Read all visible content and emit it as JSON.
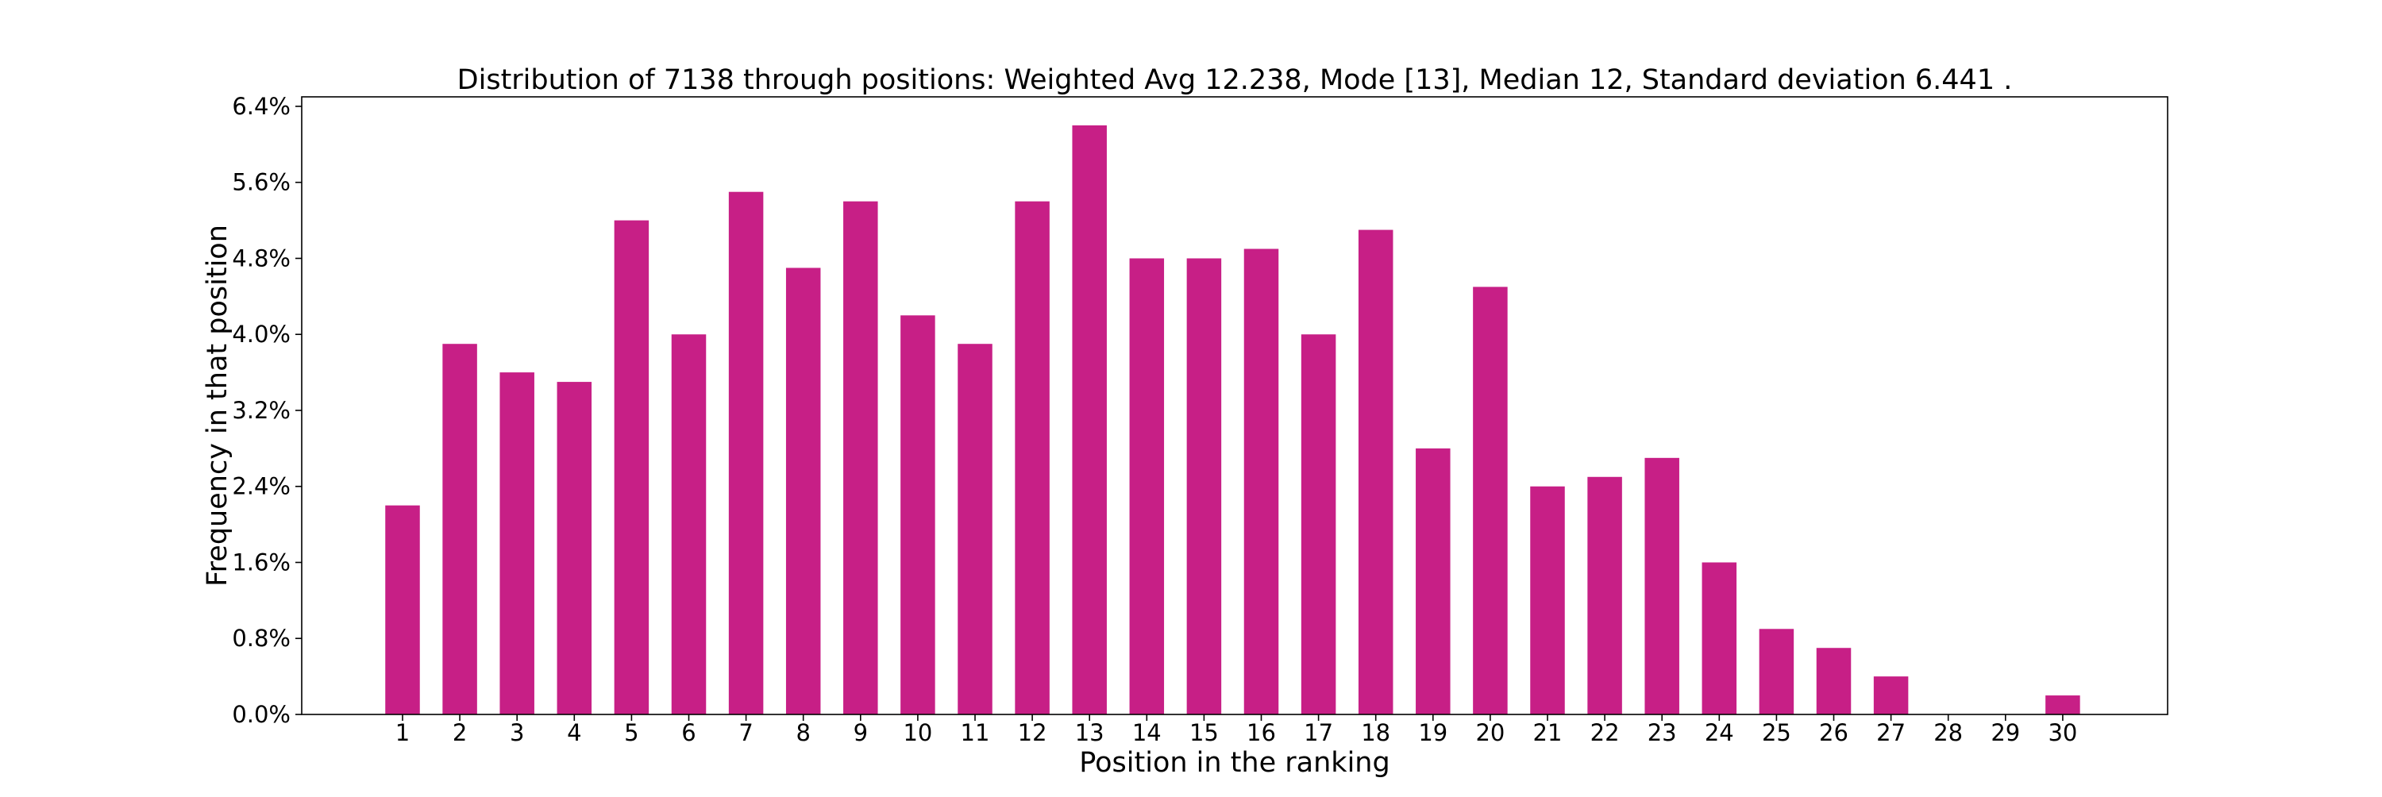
{
  "chart_data": {
    "type": "bar",
    "title": "Distribution of 7138 through positions: Weighted Avg 12.238, Mode [13], Median 12, Standard deviation 6.441 .",
    "xlabel": "Position in the ranking",
    "ylabel": "Frequency in that position",
    "categories": [
      "1",
      "2",
      "3",
      "4",
      "5",
      "6",
      "7",
      "8",
      "9",
      "10",
      "11",
      "12",
      "13",
      "14",
      "15",
      "16",
      "17",
      "18",
      "19",
      "20",
      "21",
      "22",
      "23",
      "24",
      "25",
      "26",
      "27",
      "28",
      "29",
      "30"
    ],
    "values": [
      2.2,
      3.9,
      3.6,
      3.5,
      5.2,
      4.0,
      5.5,
      4.7,
      5.4,
      4.2,
      3.9,
      5.4,
      6.2,
      4.8,
      4.8,
      4.9,
      4.0,
      5.1,
      2.8,
      4.5,
      2.4,
      2.5,
      2.7,
      1.6,
      0.9,
      0.7,
      0.4,
      0.0,
      0.0,
      0.2
    ],
    "value_unit": "%",
    "ylim": [
      0,
      6.5
    ],
    "yticks": [
      0.0,
      0.8,
      1.6,
      2.4,
      3.2,
      4.0,
      4.8,
      5.6,
      6.4
    ],
    "ytick_labels": [
      "0.0%",
      "0.8%",
      "1.6%",
      "2.4%",
      "3.2%",
      "4.0%",
      "4.8%",
      "5.6%",
      "6.4%"
    ],
    "grid": false,
    "legend": null,
    "bar_color": "#c71f86"
  }
}
